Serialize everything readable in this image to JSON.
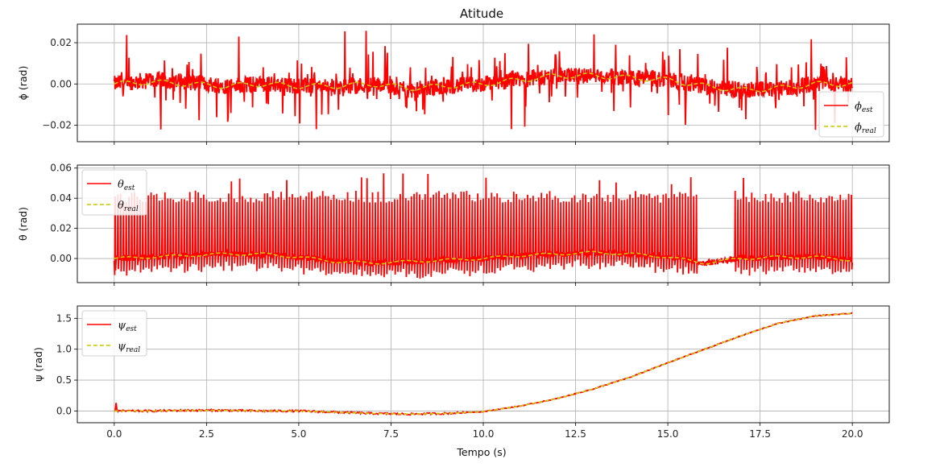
{
  "colors": {
    "est": "#ff0000",
    "real": "#c8c800",
    "grid": "#b0b0b0",
    "frame": "#000000"
  },
  "chart_data": [
    {
      "type": "line",
      "title": "Atitude",
      "xlabel": "",
      "ylabel": "ϕ (rad)",
      "xlim": [
        -1.0,
        21.0
      ],
      "ylim": [
        -0.028,
        0.029
      ],
      "xticks": [
        "0.0",
        "2.5",
        "5.0",
        "7.5",
        "10.0",
        "12.5",
        "15.0",
        "17.5",
        "20.0"
      ],
      "yticks": [
        "−0.02",
        "0.00",
        "0.02"
      ],
      "ytick_values": [
        -0.02,
        0.0,
        0.02
      ],
      "legend": "bottom-right",
      "grid": true,
      "series": [
        {
          "name": "ϕ_est",
          "style": "solid",
          "x": [
            0,
            1,
            2,
            3,
            4,
            5,
            6,
            7,
            8,
            9,
            10,
            11,
            12,
            13,
            14,
            15,
            16,
            17,
            18,
            19,
            20
          ],
          "values": [
            0.0,
            0.002,
            0.001,
            -0.001,
            0.0,
            -0.001,
            -0.002,
            0.0,
            -0.003,
            -0.001,
            0.0,
            0.002,
            0.004,
            0.004,
            0.003,
            0.002,
            -0.001,
            -0.003,
            -0.002,
            0.0,
            0.0
          ],
          "noise": 0.012
        },
        {
          "name": "ϕ_real",
          "style": "dashed",
          "x": [
            0,
            1,
            2,
            3,
            4,
            5,
            6,
            7,
            8,
            9,
            10,
            11,
            12,
            13,
            14,
            15,
            16,
            17,
            18,
            19,
            20
          ],
          "values": [
            0.0,
            0.001,
            0.0,
            -0.001,
            0.0,
            -0.001,
            -0.001,
            0.0,
            -0.002,
            -0.001,
            0.0,
            0.002,
            0.004,
            0.004,
            0.003,
            0.002,
            -0.001,
            -0.003,
            -0.002,
            0.0,
            0.0
          ],
          "noise": 0.0
        }
      ]
    },
    {
      "type": "line",
      "title": "",
      "xlabel": "",
      "ylabel": "θ (rad)",
      "xlim": [
        -1.0,
        21.0
      ],
      "ylim": [
        -0.016,
        0.062
      ],
      "xticks": [
        "0.0",
        "2.5",
        "5.0",
        "7.5",
        "10.0",
        "12.5",
        "15.0",
        "17.5",
        "20.0"
      ],
      "yticks": [
        "0.00",
        "0.02",
        "0.04",
        "0.06"
      ],
      "ytick_values": [
        0.0,
        0.02,
        0.04,
        0.06
      ],
      "legend": "top-left",
      "grid": true,
      "series": [
        {
          "name": "θ_est",
          "style": "solid",
          "x": [
            0,
            1,
            2,
            3,
            4,
            5,
            6,
            7,
            8,
            9,
            10,
            11,
            12,
            13,
            14,
            15,
            16,
            17,
            18,
            19,
            20
          ],
          "values": [
            0.0,
            0.001,
            0.002,
            0.003,
            0.003,
            0.001,
            -0.002,
            -0.003,
            -0.002,
            -0.001,
            0.0,
            0.002,
            0.003,
            0.004,
            0.003,
            0.001,
            -0.003,
            0.0,
            0.001,
            0.001,
            -0.001
          ],
          "peak": 0.041,
          "gap": [
            15.8,
            16.8
          ]
        },
        {
          "name": "θ_real",
          "style": "dashed",
          "x": [
            0,
            1,
            2,
            3,
            4,
            5,
            6,
            7,
            8,
            9,
            10,
            11,
            12,
            13,
            14,
            15,
            16,
            17,
            18,
            19,
            20
          ],
          "values": [
            0.0,
            0.001,
            0.002,
            0.003,
            0.003,
            0.001,
            -0.002,
            -0.003,
            -0.002,
            -0.001,
            0.0,
            0.002,
            0.003,
            0.004,
            0.003,
            0.001,
            -0.003,
            0.0,
            0.001,
            0.001,
            -0.001
          ]
        }
      ]
    },
    {
      "type": "line",
      "title": "",
      "xlabel": "Tempo (s)",
      "ylabel": "ψ (rad)",
      "xlim": [
        -1.0,
        21.0
      ],
      "ylim": [
        -0.19,
        1.7
      ],
      "xticks": [
        "0.0",
        "2.5",
        "5.0",
        "7.5",
        "10.0",
        "12.5",
        "15.0",
        "17.5",
        "20.0"
      ],
      "yticks": [
        "0.0",
        "0.5",
        "1.0",
        "1.5"
      ],
      "ytick_values": [
        0.0,
        0.5,
        1.0,
        1.5
      ],
      "legend": "top-left",
      "grid": true,
      "series": [
        {
          "name": "ψ_est",
          "style": "solid",
          "x": [
            0,
            1,
            2,
            3,
            4,
            5,
            6,
            7,
            8,
            9,
            10,
            11,
            12,
            13,
            14,
            15,
            16,
            17,
            18,
            19,
            20
          ],
          "values": [
            0.0,
            0.0,
            0.01,
            0.01,
            0.0,
            0.0,
            -0.02,
            -0.04,
            -0.05,
            -0.04,
            -0.01,
            0.08,
            0.2,
            0.36,
            0.55,
            0.78,
            1.0,
            1.22,
            1.42,
            1.54,
            1.58
          ]
        },
        {
          "name": "ψ_real",
          "style": "dashed",
          "x": [
            0,
            1,
            2,
            3,
            4,
            5,
            6,
            7,
            8,
            9,
            10,
            11,
            12,
            13,
            14,
            15,
            16,
            17,
            18,
            19,
            20
          ],
          "values": [
            0.0,
            0.0,
            0.01,
            0.01,
            0.0,
            0.0,
            -0.02,
            -0.04,
            -0.05,
            -0.04,
            -0.01,
            0.08,
            0.2,
            0.36,
            0.55,
            0.78,
            1.0,
            1.22,
            1.42,
            1.54,
            1.58
          ]
        }
      ]
    }
  ],
  "legend_labels": [
    [
      {
        "base": "ϕ",
        "sub": "est"
      },
      {
        "base": "ϕ",
        "sub": "real"
      }
    ],
    [
      {
        "base": "θ",
        "sub": "est"
      },
      {
        "base": "θ",
        "sub": "real"
      }
    ],
    [
      {
        "base": "ψ",
        "sub": "est"
      },
      {
        "base": "ψ",
        "sub": "real"
      }
    ]
  ]
}
